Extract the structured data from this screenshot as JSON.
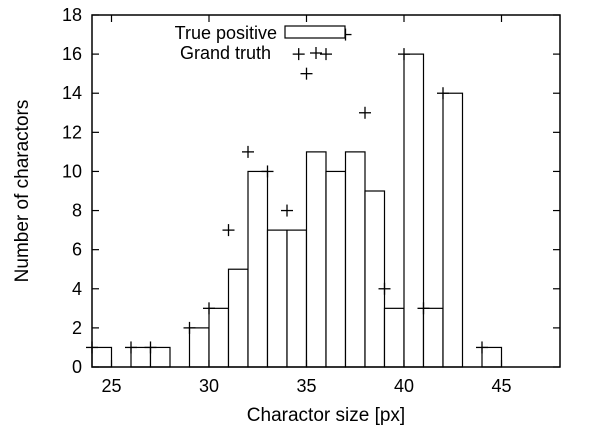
{
  "chart_data": {
    "type": "bar",
    "xlabel": "Charactor size [px]",
    "ylabel": "Number of charactors",
    "xlim": [
      24,
      48
    ],
    "ylim": [
      0,
      18
    ],
    "x_ticks": [
      25,
      30,
      35,
      40,
      45
    ],
    "y_ticks": [
      0,
      2,
      4,
      6,
      8,
      10,
      12,
      14,
      16,
      18
    ],
    "legend_position": "top",
    "series": [
      {
        "name": "True positive",
        "style": "outlined bars",
        "x": [
          24,
          26,
          27,
          29,
          30,
          31,
          32,
          33,
          34,
          35,
          36,
          37,
          38,
          39,
          40,
          41,
          42,
          44
        ],
        "values": [
          1,
          1,
          1,
          2,
          3,
          5,
          10,
          7,
          7,
          11,
          10,
          11,
          9,
          3,
          16,
          3,
          14,
          1
        ]
      },
      {
        "name": "Grand truth",
        "style": "plus markers",
        "x": [
          24,
          26,
          27,
          29,
          30,
          31,
          32,
          33,
          34,
          34.6,
          35,
          36,
          37,
          38,
          39,
          40,
          41,
          42,
          44
        ],
        "values": [
          1,
          1,
          1,
          2,
          3,
          7,
          11,
          10,
          8,
          16,
          15,
          16,
          17,
          13,
          4,
          16,
          3,
          14,
          1
        ]
      }
    ]
  }
}
